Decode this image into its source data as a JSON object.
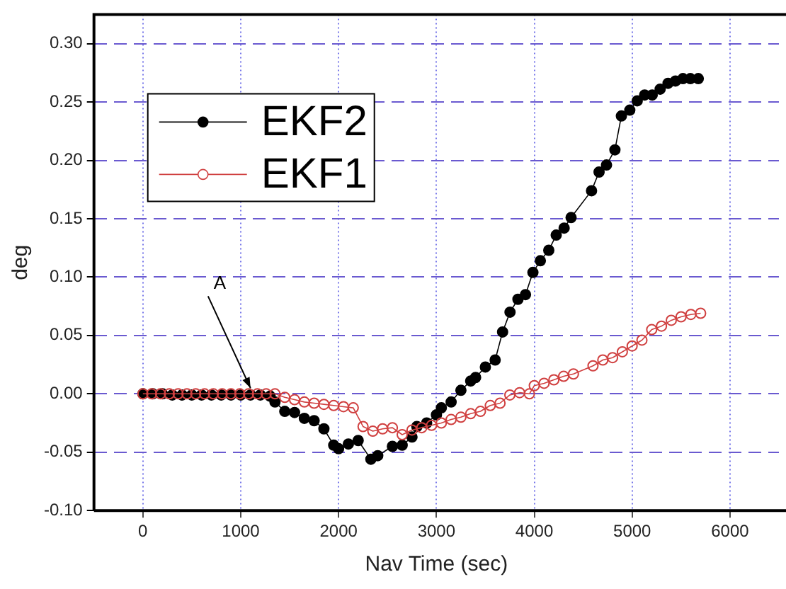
{
  "chart_data": {
    "type": "line",
    "xlabel": "Nav Time (sec)",
    "ylabel": "deg",
    "xlim": [
      -500,
      6500
    ],
    "xticks": [
      0,
      1000,
      2000,
      3000,
      4000,
      5000,
      6000
    ],
    "ylim": [
      -0.1,
      0.325
    ],
    "yticks": [
      {
        "value": -0.1,
        "label": "-0.10"
      },
      {
        "value": -0.05,
        "label": "-0.05"
      },
      {
        "value": 0,
        "label": "0.00"
      },
      {
        "value": 0.05,
        "label": "0.05"
      },
      {
        "value": 0.1,
        "label": "0.10"
      },
      {
        "value": 0.15,
        "label": "0.15"
      },
      {
        "value": 0.2,
        "label": "0.20"
      },
      {
        "value": 0.25,
        "label": "0.25"
      },
      {
        "value": 0.3,
        "label": "0.30"
      }
    ],
    "grid": true,
    "legend": "top left",
    "line_style": "solid",
    "annotations": [
      {
        "text": "A",
        "x": 1100,
        "y": 0
      }
    ],
    "series": [
      {
        "name": "EKF2",
        "color": "#000000",
        "marker": "circle",
        "x": [
          0,
          100,
          200,
          300,
          400,
          500,
          600,
          700,
          800,
          900,
          1000,
          1100,
          1200,
          1300,
          1350,
          1450,
          1550,
          1650,
          1750,
          1850,
          1950,
          2000,
          2100,
          2200,
          2330,
          2400,
          2550,
          2650,
          2750,
          2800,
          2900,
          3000,
          3050,
          3150,
          3250,
          3350,
          3400,
          3500,
          3600,
          3676,
          3752,
          3833,
          3910,
          3986,
          4062,
          4148,
          4224,
          4305,
          4376,
          4585,
          4662,
          4738,
          4824,
          4890,
          4976,
          5052,
          5128,
          5205,
          5286,
          5367,
          5443,
          5519,
          5595,
          5676
        ],
        "values": [
          0,
          0,
          0,
          -0.001,
          -0.001,
          -0.001,
          -0.001,
          -0.001,
          -0.001,
          -0.001,
          -0.001,
          -0.001,
          -0.001,
          -0.002,
          -0.007,
          -0.015,
          -0.016,
          -0.021,
          -0.023,
          -0.03,
          -0.044,
          -0.047,
          -0.043,
          -0.04,
          -0.056,
          -0.053,
          -0.045,
          -0.044,
          -0.037,
          -0.028,
          -0.025,
          -0.018,
          -0.012,
          -0.007,
          0.003,
          0.011,
          0.014,
          0.023,
          0.029,
          0.053,
          0.07,
          0.081,
          0.085,
          0.104,
          0.114,
          0.123,
          0.136,
          0.142,
          0.151,
          0.174,
          0.19,
          0.196,
          0.209,
          0.238,
          0.243,
          0.251,
          0.256,
          0.256,
          0.261,
          0.266,
          0.268,
          0.27,
          0.27,
          0.27
        ]
      },
      {
        "name": "EKF1",
        "color": "#d04040",
        "marker": "circle",
        "x": [
          0,
          90,
          180,
          270,
          360,
          450,
          540,
          630,
          720,
          810,
          900,
          990,
          1080,
          1170,
          1260,
          1350,
          1450,
          1550,
          1650,
          1750,
          1850,
          1950,
          2050,
          2150,
          2250,
          2350,
          2450,
          2550,
          2650,
          2750,
          2850,
          2950,
          3050,
          3150,
          3250,
          3350,
          3450,
          3550,
          3650,
          3750,
          3850,
          3950,
          4000,
          4100,
          4200,
          4300,
          4400,
          4600,
          4700,
          4800,
          4900,
          5000,
          5100,
          5200,
          5300,
          5400,
          5500,
          5600,
          5700
        ],
        "values": [
          0,
          0,
          0,
          0,
          0,
          0,
          0,
          0,
          0,
          0,
          0,
          0,
          0,
          0,
          0,
          0,
          -0.003,
          -0.005,
          -0.007,
          -0.008,
          -0.009,
          -0.01,
          -0.011,
          -0.012,
          -0.028,
          -0.032,
          -0.03,
          -0.029,
          -0.035,
          -0.031,
          -0.029,
          -0.027,
          -0.025,
          -0.022,
          -0.02,
          -0.017,
          -0.015,
          -0.01,
          -0.008,
          -0.001,
          0.001,
          0,
          0.007,
          0.009,
          0.012,
          0.015,
          0.017,
          0.024,
          0.029,
          0.031,
          0.036,
          0.041,
          0.046,
          0.055,
          0.058,
          0.063,
          0.066,
          0.068,
          0.069
        ]
      }
    ]
  }
}
